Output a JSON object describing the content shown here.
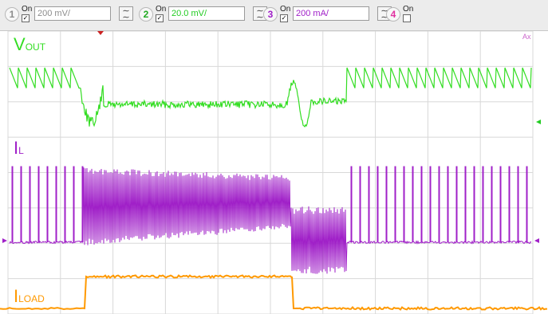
{
  "channels": [
    {
      "number": "1",
      "on_label": "On",
      "checked": true,
      "scale": "200 mV/",
      "color": "#8c8c8c",
      "coupling_icon": "ac-coupling-icon"
    },
    {
      "number": "2",
      "on_label": "On",
      "checked": true,
      "scale": "20.0 mV/",
      "color": "#22cc22",
      "coupling_icon": "ac-coupling-icon"
    },
    {
      "number": "3",
      "on_label": "On",
      "checked": true,
      "scale": "200 mA/",
      "color": "#a020c8",
      "coupling_icon": "ac-coupling-icon"
    },
    {
      "number": "4",
      "on_label": "On",
      "checked": false,
      "color": "#e030a0"
    }
  ],
  "traces": {
    "vout": {
      "label": "V",
      "sub": "OUT",
      "color": "#33dd22"
    },
    "il": {
      "label": "I",
      "sub": "L",
      "color": "#a020c8"
    },
    "iload": {
      "label": "I",
      "sub": "LOAD",
      "color": "#ff9900",
      "low_level": 0,
      "high_level": 1
    }
  },
  "screen": {
    "grid_color": "#d8d8d8",
    "marker_color": "#cc2222",
    "corner_label": "Ax",
    "divisions_x": 10,
    "divisions_y": 8
  }
}
